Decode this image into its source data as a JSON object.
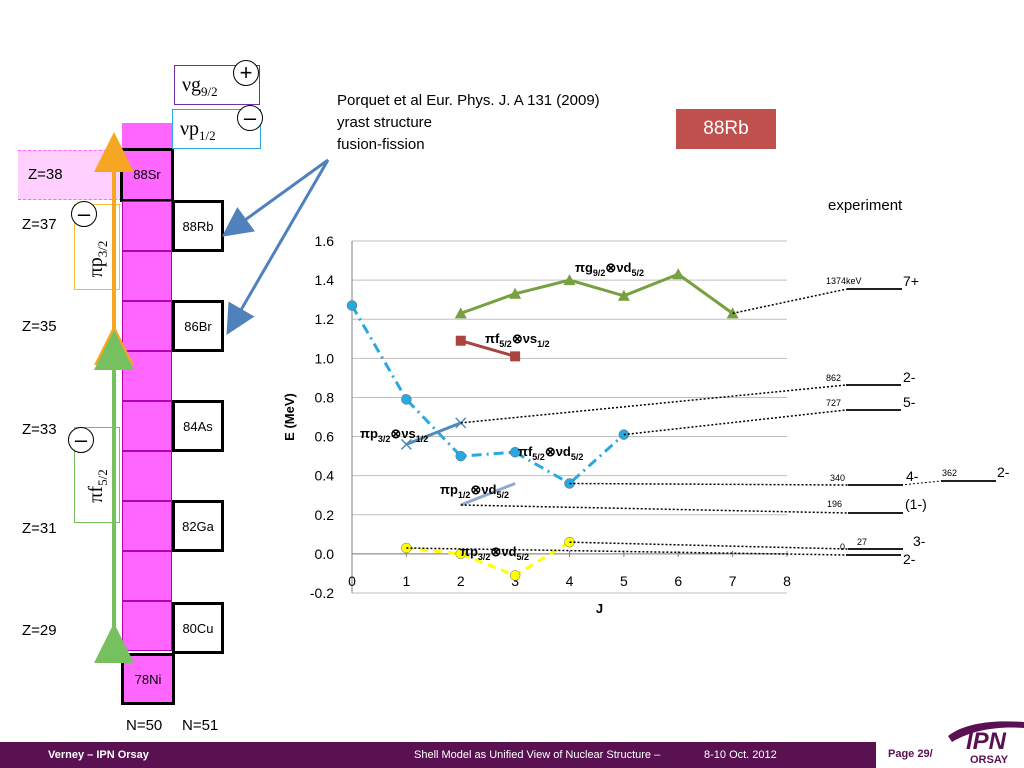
{
  "reference": {
    "line1": "Porquet et al Eur. Phys. J. A 131 (2009)",
    "line2": "yrast structure",
    "line3": "fusion-fission"
  },
  "badge": {
    "label": "88Rb",
    "color": "#c0504d"
  },
  "orbitals": {
    "g92": {
      "sym": "ν",
      "base": "g",
      "sub": "9/2",
      "sign": "+"
    },
    "p12": {
      "sym": "ν",
      "base": "p",
      "sub": "1/2",
      "sign": "–"
    },
    "p32": {
      "sym": "π",
      "base": "p",
      "sub": "3/2",
      "sign": "–"
    },
    "f52": {
      "sym": "π",
      "base": "f",
      "sub": "5/2",
      "sign": "–"
    }
  },
  "z_labels": [
    "Z=38",
    "Z=37",
    "Z=35",
    "Z=33",
    "Z=31",
    "Z=29"
  ],
  "nuclei": [
    "88Sr",
    "88Rb",
    "86Br",
    "84As",
    "82Ga",
    "80Cu",
    "78Ni"
  ],
  "n_labels": [
    "N=50",
    "N=51"
  ],
  "experiment_label": "experiment",
  "chart_data": {
    "type": "line",
    "xlabel": "J",
    "ylabel": "E (MeV)",
    "xlim": [
      0,
      8
    ],
    "ylim": [
      -0.2,
      1.6
    ],
    "xticks": [
      "0",
      "1",
      "2",
      "3",
      "4",
      "5",
      "6",
      "7",
      "8"
    ],
    "yticks": [
      "-0.2",
      "0.0",
      "0.2",
      "0.4",
      "0.6",
      "0.8",
      "1.0",
      "1.2",
      "1.4",
      "1.6"
    ],
    "grid": true,
    "series": [
      {
        "label_base": "πg",
        "label_sub1": "9/2",
        "label_mid": "⊗νd",
        "label_sub2": "5/2",
        "color": "#77a040",
        "marker": "triangle",
        "dash": "solid",
        "x": [
          2,
          3,
          4,
          5,
          6,
          7
        ],
        "y": [
          1.23,
          1.33,
          1.4,
          1.32,
          1.43,
          1.23
        ]
      },
      {
        "label_base": "πf",
        "label_sub1": "5/2",
        "label_mid": "⊗νs",
        "label_sub2": "1/2",
        "color": "#a94440",
        "marker": "square",
        "dash": "solid",
        "x": [
          2,
          3
        ],
        "y": [
          1.09,
          1.01
        ]
      },
      {
        "label_base": "πf",
        "label_sub1": "5/2",
        "label_mid": "⊗νd",
        "label_sub2": "5/2",
        "color": "#2aa8e0",
        "marker": "circle",
        "dash": "dashdot",
        "x": [
          0,
          1,
          2,
          3,
          4,
          5
        ],
        "y": [
          1.27,
          0.79,
          0.5,
          0.52,
          0.36,
          0.61
        ]
      },
      {
        "label_base": "πp",
        "label_sub1": "3/2",
        "label_mid": "⊗νs",
        "label_sub2": "1/2",
        "color": "#4f8ab8",
        "marker": "x",
        "dash": "solid",
        "x": [
          1,
          2
        ],
        "y": [
          0.56,
          0.67
        ]
      },
      {
        "label_base": "πp",
        "label_sub1": "1/2",
        "label_mid": "⊗νd",
        "label_sub2": "5/2",
        "color": "#8fa8cf",
        "marker": "none",
        "dash": "solid",
        "x": [
          2,
          3
        ],
        "y": [
          0.25,
          0.36
        ]
      },
      {
        "label_base": "πp",
        "label_sub1": "3/2",
        "label_mid": "⊗νd",
        "label_sub2": "5/2",
        "color": "#ffff00",
        "marker": "circle",
        "dash": "dash",
        "x": [
          1,
          2,
          3,
          4
        ],
        "y": [
          0.03,
          0.0,
          -0.11,
          0.06
        ]
      }
    ],
    "experiment_levels": [
      {
        "energy_label": "1374keV",
        "spin": "7+",
        "from_x": 7,
        "from_y": 1.23
      },
      {
        "energy_label": "862",
        "spin": "2-",
        "from_x": 2,
        "from_y": 0.67
      },
      {
        "energy_label": "727",
        "spin": "5-",
        "from_x": 5,
        "from_y": 0.61
      },
      {
        "energy_label": "340",
        "spin": "4-",
        "from_x": 4,
        "from_y": 0.36
      },
      {
        "energy_label": "362",
        "spin": "2-"
      },
      {
        "energy_label": "196",
        "spin": "(1-)",
        "from_x": 2,
        "from_y": 0.25
      },
      {
        "energy_label": "27",
        "spin": "3-",
        "from_x": 4,
        "from_y": 0.06
      },
      {
        "energy_label": "0",
        "spin": "2-",
        "from_x": 1,
        "from_y": 0.03
      }
    ]
  },
  "footer": {
    "left": "Verney – IPN Orsay",
    "center": "Shell Model as Unified View of Nuclear Structure –",
    "date": "8-10 Oct. 2012",
    "page": "Page 29/",
    "logo_top": "IPN",
    "logo_bottom": "ORSAY",
    "bg": "#5a1152"
  }
}
